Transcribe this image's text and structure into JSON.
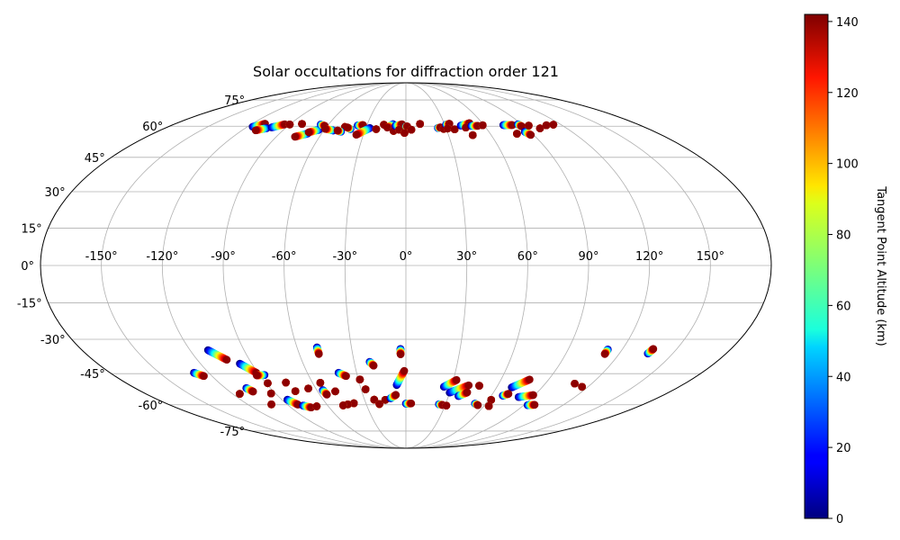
{
  "chart_data": {
    "type": "scatter",
    "projection": "mollweide",
    "title": "Solar occultations for diffraction order 121",
    "lon_ticks": [
      -150,
      -120,
      -90,
      -60,
      -30,
      0,
      30,
      60,
      90,
      120,
      150
    ],
    "lon_tick_labels": [
      "-150°",
      "-120°",
      "-90°",
      "-60°",
      "-30°",
      "0°",
      "30°",
      "60°",
      "90°",
      "120°",
      "150°"
    ],
    "lat_ticks": [
      75,
      60,
      45,
      30,
      15,
      0,
      -15,
      -30,
      -45,
      -60,
      -75
    ],
    "lat_tick_labels": [
      "75°",
      "60°",
      "45°",
      "30°",
      "15°",
      "0°",
      "-15°",
      "-30°",
      "-45°",
      "-60°",
      "-75°"
    ],
    "grid": true,
    "colorbar": {
      "label": "Tangent Point Altitude (km)",
      "colormap": "jet",
      "range": [
        0,
        142
      ],
      "ticks": [
        0,
        20,
        40,
        60,
        80,
        100,
        120,
        140
      ],
      "tick_labels": [
        "0",
        "20",
        "40",
        "60",
        "80",
        "100",
        "120",
        "140"
      ]
    },
    "tracks": [
      {
        "lon": [
          -116,
          -110
        ],
        "lat": [
          59.7,
          61.3
        ]
      },
      {
        "lon": [
          -104,
          -110
        ],
        "lat": [
          59,
          57.9
        ]
      },
      {
        "lon": [
          -101,
          -94
        ],
        "lat": [
          59.4,
          61
        ]
      },
      {
        "lon": [
          -90,
          -90
        ],
        "lat": [
          60.9,
          60.9
        ]
      },
      {
        "lon": [
          -81,
          -81
        ],
        "lat": [
          61.2,
          61.2
        ]
      },
      {
        "lon": [
          -70,
          -77
        ],
        "lat": [
          56.3,
          54.7
        ]
      },
      {
        "lon": [
          -64,
          -70
        ],
        "lat": [
          58.2,
          56.9
        ]
      },
      {
        "lon": [
          -66,
          -62
        ],
        "lat": [
          60.9,
          60.2
        ]
      },
      {
        "lon": [
          -53,
          -60
        ],
        "lat": [
          57.8,
          58.7
        ]
      },
      {
        "lon": [
          -46,
          -46
        ],
        "lat": [
          59.6,
          59.6
        ]
      },
      {
        "lon": [
          -47,
          -50
        ],
        "lat": [
          57.2,
          57.8
        ]
      },
      {
        "lon": [
          -41,
          -44
        ],
        "lat": [
          58.5,
          59.4
        ]
      },
      {
        "lon": [
          -37,
          -33
        ],
        "lat": [
          60.4,
          60.6
        ]
      },
      {
        "lon": [
          -27,
          -35
        ],
        "lat": [
          59.1,
          55.7
        ]
      },
      {
        "lon": [
          -22,
          -22
        ],
        "lat": [
          58.5,
          58.5
        ]
      },
      {
        "lon": [
          -17,
          -17
        ],
        "lat": [
          60.8,
          60.8
        ]
      },
      {
        "lon": [
          -10,
          -14
        ],
        "lat": [
          61.1,
          59.3
        ]
      },
      {
        "lon": [
          -9,
          -9
        ],
        "lat": [
          57.6,
          57.6
        ]
      },
      {
        "lon": [
          -8,
          -3
        ],
        "lat": [
          60.2,
          61
        ]
      },
      {
        "lon": [
          0,
          1
        ],
        "lat": [
          59.8,
          59.9
        ]
      },
      {
        "lon": [
          -5,
          -5
        ],
        "lat": [
          58.2,
          58.2
        ]
      },
      {
        "lon": [
          -1,
          -1
        ],
        "lat": [
          56.6,
          56.6
        ]
      },
      {
        "lon": [
          4,
          4
        ],
        "lat": [
          58.2,
          58.2
        ]
      },
      {
        "lon": [
          11,
          11
        ],
        "lat": [
          61.2,
          61.2
        ]
      },
      {
        "lon": [
          24,
          26
        ],
        "lat": [
          59.1,
          59.4
        ]
      },
      {
        "lon": [
          28,
          28
        ],
        "lat": [
          58.6,
          58.6
        ]
      },
      {
        "lon": [
          31,
          34
        ],
        "lat": [
          60.8,
          61.3
        ]
      },
      {
        "lon": [
          31,
          31
        ],
        "lat": [
          58.8,
          58.8
        ]
      },
      {
        "lon": [
          36,
          36
        ],
        "lat": [
          58.4,
          58.4
        ]
      },
      {
        "lon": [
          42,
          50
        ],
        "lat": [
          60.3,
          61.6
        ]
      },
      {
        "lon": [
          45,
          45
        ],
        "lat": [
          59.3,
          59.3
        ]
      },
      {
        "lon": [
          47,
          47
        ],
        "lat": [
          55.5,
          55.5
        ]
      },
      {
        "lon": [
          50,
          55
        ],
        "lat": [
          60.2,
          60.2
        ]
      },
      {
        "lon": [
          59,
          59
        ],
        "lat": [
          60.5,
          60.5
        ]
      },
      {
        "lon": [
          75,
          82
        ],
        "lat": [
          60.6,
          60.6
        ]
      },
      {
        "lon": [
          87,
          88
        ],
        "lat": [
          61,
          60
        ]
      },
      {
        "lon": [
          79,
          79
        ],
        "lat": [
          56.2,
          56.2
        ]
      },
      {
        "lon": [
          86,
          88
        ],
        "lat": [
          57.2,
          55.6
        ]
      },
      {
        "lon": [
          94,
          94
        ],
        "lat": [
          60.3,
          60.3
        ]
      },
      {
        "lon": [
          100,
          100
        ],
        "lat": [
          58.9,
          58.9
        ]
      },
      {
        "lon": [
          108,
          108
        ],
        "lat": [
          60.5,
          60.5
        ]
      },
      {
        "lon": [
          114,
          114
        ],
        "lat": [
          60.8,
          60.8
        ]
      },
      {
        "lon": [
          -129,
          -125
        ],
        "lat": [
          -44.6,
          -46.1
        ]
      },
      {
        "lon": [
          -110,
          -103
        ],
        "lat": [
          -34.6,
          -38.8
        ]
      },
      {
        "lon": [
          -97,
          -91
        ],
        "lat": [
          -40.5,
          -44.6
        ]
      },
      {
        "lon": [
          -87,
          -92
        ],
        "lat": [
          -45.6,
          -45.8
        ]
      },
      {
        "lon": [
          -89,
          -89
        ],
        "lat": [
          -49.4,
          -49.4
        ]
      },
      {
        "lon": [
          -115,
          -115
        ],
        "lat": [
          -54.5,
          -54.5
        ]
      },
      {
        "lon": [
          -106,
          -104
        ],
        "lat": [
          -51.7,
          -53.4
        ]
      },
      {
        "lon": [
          -102,
          -102
        ],
        "lat": [
          -59.8,
          -59.8
        ]
      },
      {
        "lon": [
          -93,
          -93
        ],
        "lat": [
          -54.3,
          -54.3
        ]
      },
      {
        "lon": [
          -86,
          -82
        ],
        "lat": [
          -57.4,
          -59.9
        ]
      },
      {
        "lon": [
          -79,
          -74
        ],
        "lat": [
          -60.4,
          -61.4
        ]
      },
      {
        "lon": [
          -69,
          -69
        ],
        "lat": [
          -60.8,
          -60.8
        ]
      },
      {
        "lon": [
          -77,
          -77
        ],
        "lat": [
          -49.1,
          -49.1
        ]
      },
      {
        "lon": [
          -75,
          -75
        ],
        "lat": [
          -53.2,
          -53.2
        ]
      },
      {
        "lon": [
          -65,
          -65
        ],
        "lat": [
          -51.9,
          -51.9
        ]
      },
      {
        "lon": [
          -49,
          -49
        ],
        "lat": [
          -33.4,
          -36.3
        ]
      },
      {
        "lon": [
          -55,
          -55
        ],
        "lat": [
          -49.2,
          -49.2
        ]
      },
      {
        "lon": [
          -56,
          -55
        ],
        "lat": [
          -52.7,
          -54.9
        ]
      },
      {
        "lon": [
          -48,
          -48
        ],
        "lat": [
          -53.3,
          -53.3
        ]
      },
      {
        "lon": [
          -41,
          -37
        ],
        "lat": [
          -44.6,
          -46.1
        ]
      },
      {
        "lon": [
          -39,
          -39
        ],
        "lat": [
          -59.2,
          -59.2
        ]
      },
      {
        "lon": [
          -44,
          -44
        ],
        "lat": [
          -59.8,
          -59.8
        ]
      },
      {
        "lon": [
          -48,
          -48
        ],
        "lat": [
          -60.3,
          -60.3
        ]
      },
      {
        "lon": [
          -29,
          -29
        ],
        "lat": [
          -47.7,
          -47.7
        ]
      },
      {
        "lon": [
          -27,
          -27
        ],
        "lat": [
          -52.3,
          -52.3
        ]
      },
      {
        "lon": [
          -21,
          -19
        ],
        "lat": [
          -39.7,
          -41.4
        ]
      },
      {
        "lon": [
          -23,
          -23
        ],
        "lat": [
          -57.4,
          -57.4
        ]
      },
      {
        "lon": [
          -20,
          -20
        ],
        "lat": [
          -59.6,
          -59.6
        ]
      },
      {
        "lon": [
          -15,
          -15
        ],
        "lat": [
          -57.5,
          -57.5
        ]
      },
      {
        "lon": [
          -11,
          -7
        ],
        "lat": [
          -56.7,
          -55
        ]
      },
      {
        "lon": [
          -6,
          -1
        ],
        "lat": [
          -50.3,
          -43.7
        ]
      },
      {
        "lon": [
          -3,
          -3
        ],
        "lat": [
          -34.1,
          -36.4
        ]
      },
      {
        "lon": [
          0,
          4
        ],
        "lat": [
          -59.4,
          -59.3
        ]
      },
      {
        "lon": [
          25,
          32
        ],
        "lat": [
          -51.1,
          -47.9
        ]
      },
      {
        "lon": [
          30,
          41
        ],
        "lat": [
          -53.9,
          -50.4
        ]
      },
      {
        "lon": [
          25,
          28
        ],
        "lat": [
          -59.7,
          -60.1
        ]
      },
      {
        "lon": [
          31,
          31
        ],
        "lat": [
          -60.4,
          -60.4
        ]
      },
      {
        "lon": [
          37,
          42
        ],
        "lat": [
          -55.6,
          -53.8
        ]
      },
      {
        "lon": [
          48,
          48
        ],
        "lat": [
          -50.6,
          -50.6
        ]
      },
      {
        "lon": [
          52,
          55
        ],
        "lat": [
          -59.4,
          -60.2
        ]
      },
      {
        "lon": [
          62,
          62
        ],
        "lat": [
          -57.5,
          -57.5
        ]
      },
      {
        "lon": [
          64,
          64
        ],
        "lat": [
          -60.7,
          -60.7
        ]
      },
      {
        "lon": [
          70,
          78
        ],
        "lat": [
          -51.4,
          -47.7
        ]
      },
      {
        "lon": [
          68,
          71
        ],
        "lat": [
          -55.4,
          -54.5
        ]
      },
      {
        "lon": [
          80,
          89
        ],
        "lat": [
          -56.1,
          -55.1
        ]
      },
      {
        "lon": [
          93,
          98
        ],
        "lat": [
          -60.2,
          -60
        ]
      },
      {
        "lon": [
          109,
          109
        ],
        "lat": [
          -49.6,
          -49.6
        ]
      },
      {
        "lon": [
          112,
          112
        ],
        "lat": [
          -34.3,
          -36.3
        ]
      },
      {
        "lon": [
          116,
          116
        ],
        "lat": [
          -51.1,
          -51.1
        ]
      },
      {
        "lon": [
          136,
          137
        ],
        "lat": [
          -36.1,
          -34.1
        ]
      }
    ]
  }
}
